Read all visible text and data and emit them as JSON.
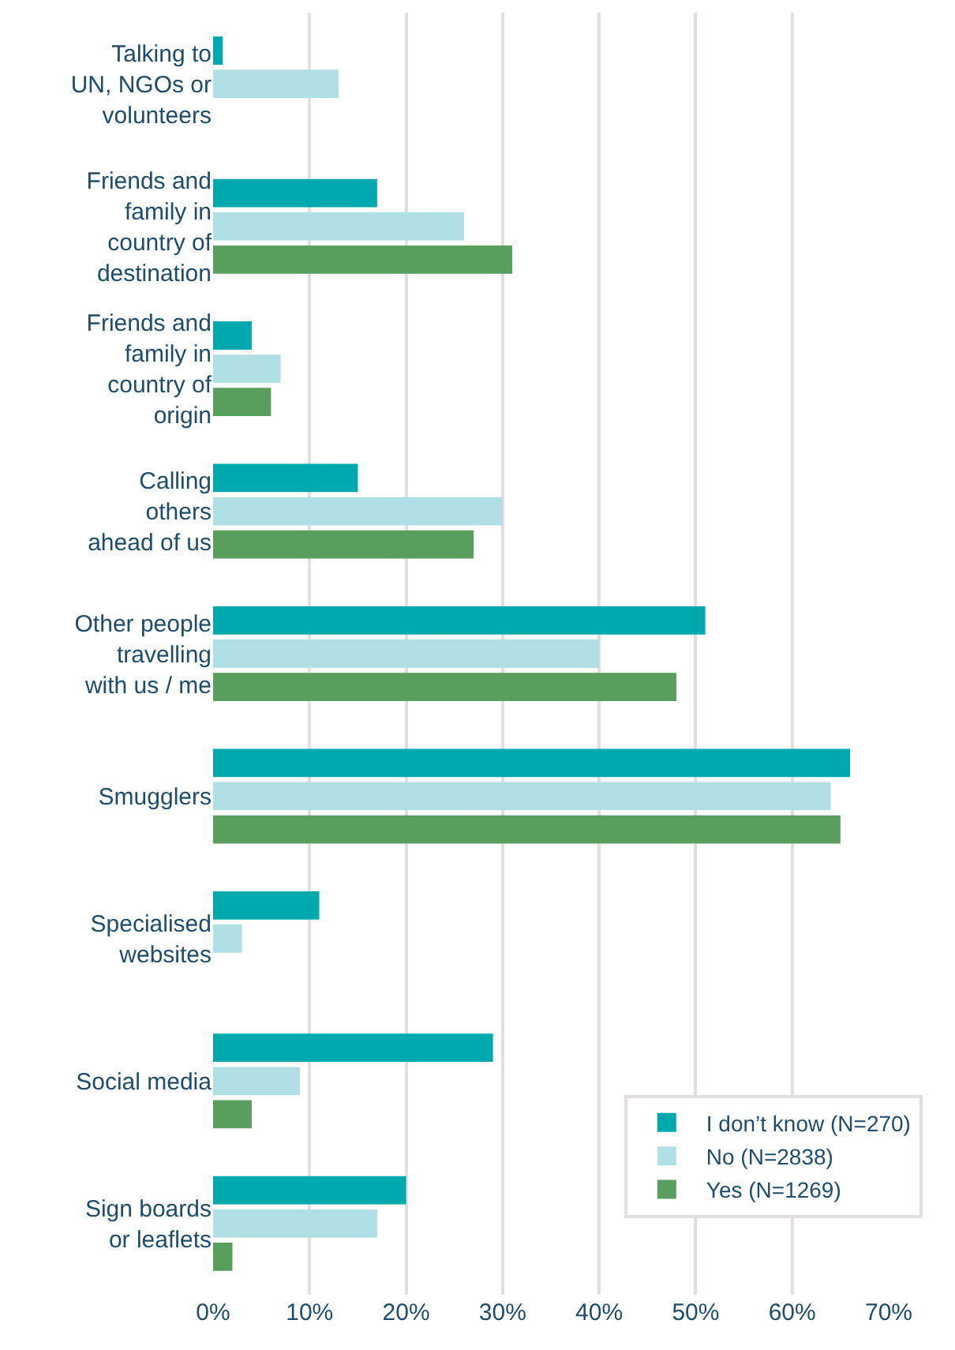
{
  "chart_data": {
    "type": "bar",
    "orientation": "horizontal",
    "categories": [
      "Talking to\nUN, NGOs or\nvolunteers",
      "Friends and\nfamily in\ncountry of\ndestination",
      "Friends and\nfamily in\ncountry of\norigin",
      "Calling\nothers\nahead of us",
      "Other people\ntravelling\nwith us / me",
      "Smugglers",
      "Specialised\nwebsites",
      "Social media",
      "Sign boards\nor leaflets"
    ],
    "series": [
      {
        "name": "I don’t know (N=270)",
        "color": "#00a9ae",
        "values": [
          1,
          17,
          4,
          15,
          51,
          66,
          11,
          29,
          20
        ]
      },
      {
        "name": "No (N=2838)",
        "color": "#b0dfe5",
        "values": [
          13,
          26,
          7,
          30,
          40,
          64,
          3,
          9,
          17
        ]
      },
      {
        "name": "Yes (N=1269)",
        "color": "#5a9e5e",
        "values": [
          null,
          31,
          6,
          27,
          48,
          65,
          null,
          4,
          2
        ]
      }
    ],
    "xlim": [
      0,
      70
    ],
    "xticks": [
      {
        "value": 0,
        "label": "0%"
      },
      {
        "value": 10,
        "label": "10%"
      },
      {
        "value": 20,
        "label": "20%"
      },
      {
        "value": 30,
        "label": "30%"
      },
      {
        "value": 40,
        "label": "40%"
      },
      {
        "value": 50,
        "label": "50%"
      },
      {
        "value": 60,
        "label": "60%"
      },
      {
        "value": 70,
        "label": "70%"
      }
    ],
    "grid": "x",
    "legend": "bottom right"
  }
}
